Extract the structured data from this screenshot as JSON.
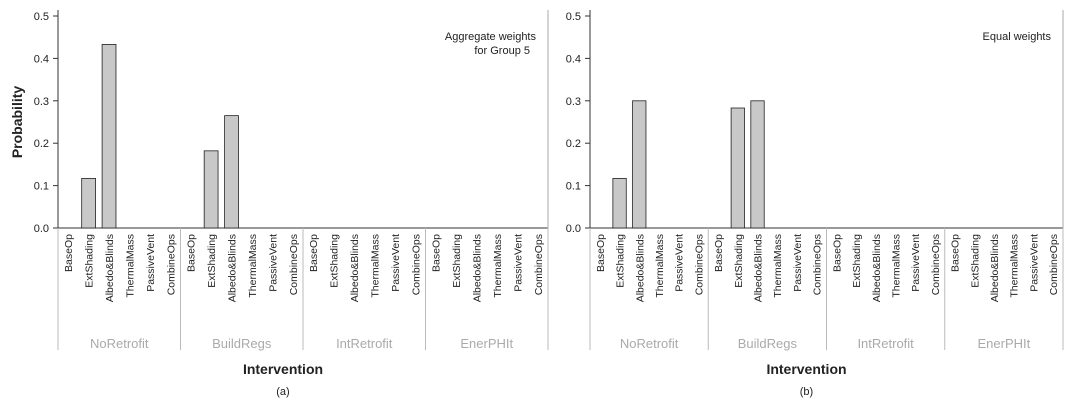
{
  "chart_data": [
    {
      "type": "bar",
      "title": null,
      "annotation": [
        "Aggregate weights",
        "for Group 5"
      ],
      "y_label": "Probability",
      "x_label": "Intervention",
      "caption": "(a)",
      "groups": [
        "NoRetrofit",
        "BuildRegs",
        "IntRetrofit",
        "EnerPHIt"
      ],
      "categories": [
        "BaseOp",
        "ExtShading",
        "Albedo&Blinds",
        "ThermalMass",
        "PassiveVent",
        "CombineOps",
        "BaseOp",
        "ExtShading",
        "Albedo&Blinds",
        "ThermalMass",
        "PassiveVent",
        "CombineOps",
        "BaseOp",
        "ExtShading",
        "Albedo&Blinds",
        "ThermalMass",
        "PassiveVent",
        "CombineOps",
        "BaseOp",
        "ExtShading",
        "Albedo&Blinds",
        "ThermalMass",
        "PassiveVent",
        "CombineOps"
      ],
      "values": [
        0,
        0.117,
        0.433,
        0,
        0,
        0,
        0,
        0.182,
        0.265,
        0,
        0,
        0,
        0,
        0,
        0,
        0,
        0,
        0,
        0,
        0,
        0,
        0,
        0,
        0
      ],
      "color": "#c8c8c8",
      "ylim": [
        0,
        0.5
      ],
      "yticks": [
        {
          "value": 0,
          "label": "0.0"
        },
        0.1,
        0.2,
        0.3,
        0.4,
        {
          "value": 0.5,
          "label": "0.5"
        }
      ]
    },
    {
      "type": "bar",
      "annotation": [
        "Equal weights"
      ],
      "x_label": "Intervention",
      "caption": "(b)",
      "groups": [
        "NoRetrofit",
        "BuildRegs",
        "IntRetrofit",
        "EnerPHIt"
      ],
      "categories": [
        "BaseOp",
        "ExtShading",
        "Albedo&Blinds",
        "ThermalMass",
        "PassiveVent",
        "CombineOps",
        "BaseOp",
        "ExtShading",
        "Albedo&Blinds",
        "ThermalMass",
        "PassiveVent",
        "CombineOps",
        "BaseOp",
        "ExtShading",
        "Albedo&Blinds",
        "ThermalMass",
        "PassiveVent",
        "CombineOps",
        "BaseOp",
        "ExtShading",
        "Albedo&Blinds",
        "ThermalMass",
        "PassiveVent",
        "CombineOps"
      ],
      "values": [
        0,
        0.117,
        0.3,
        0,
        0,
        0,
        0,
        0.283,
        0.3,
        0,
        0,
        0,
        0,
        0,
        0,
        0,
        0,
        0,
        0,
        0,
        0,
        0,
        0,
        0
      ],
      "color": "#c8c8c8",
      "ylim": [
        0,
        0.5
      ],
      "yticks": [
        {
          "value": 0,
          "label": "0.0"
        },
        0.1,
        0.2,
        0.3,
        0.4,
        {
          "value": 0.5,
          "label": "0.5"
        }
      ]
    }
  ]
}
